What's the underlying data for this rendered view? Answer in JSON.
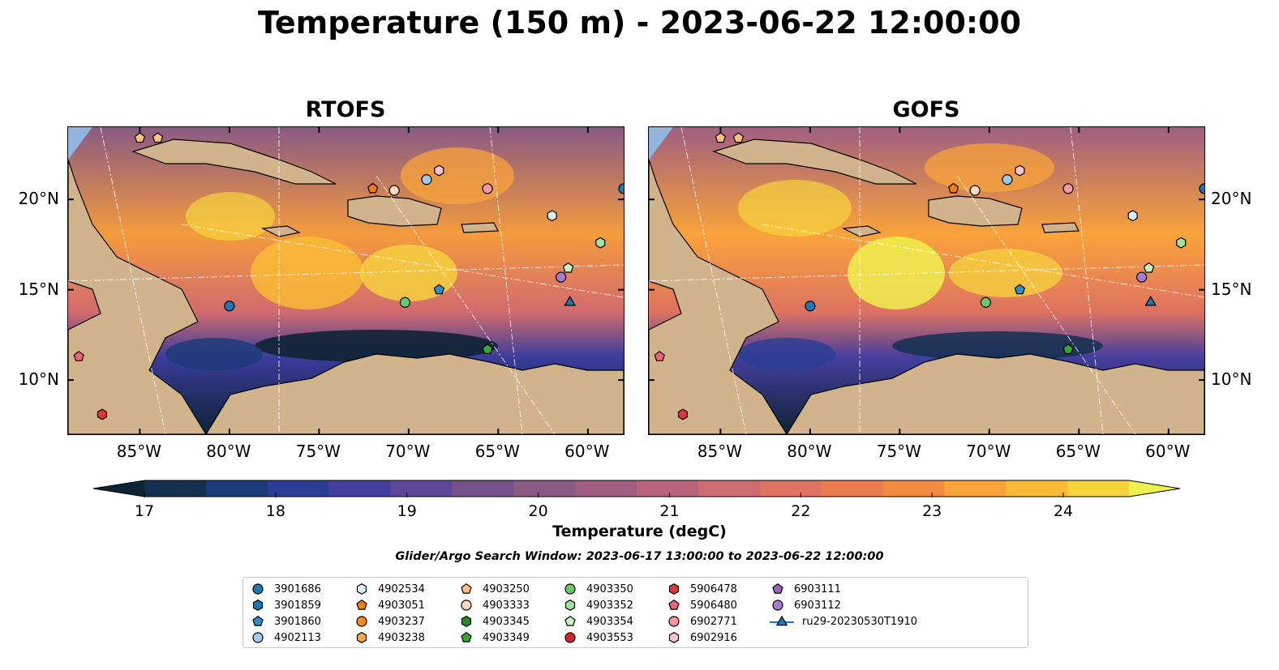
{
  "title": "Temperature (150 m) - 2023-06-22 12:00:00",
  "panels": [
    {
      "title": "RTOFS"
    },
    {
      "title": "GOFS"
    }
  ],
  "axes": {
    "lon_ticks": [
      "85°W",
      "80°W",
      "75°W",
      "70°W",
      "65°W",
      "60°W"
    ],
    "lat_ticks": [
      "20°N",
      "15°N",
      "10°N"
    ],
    "lon_range": [
      -89,
      -58
    ],
    "lat_range": [
      7,
      24
    ]
  },
  "colorbar": {
    "label": "Temperature (degC)",
    "ticks": [
      "17",
      "18",
      "19",
      "20",
      "21",
      "22",
      "23",
      "24"
    ],
    "range": [
      17,
      24.5
    ],
    "colors": [
      "#0d2433",
      "#13304f",
      "#1b3a78",
      "#2b3d94",
      "#453e9e",
      "#5d4797",
      "#745188",
      "#8a5a83",
      "#a05f80",
      "#b8657c",
      "#cc6b71",
      "#de7361",
      "#eb7c4f",
      "#f58b40",
      "#f9a33a",
      "#f9bb36",
      "#f6d43d",
      "#eff04e"
    ]
  },
  "search_window": "Glider/Argo Search Window: 2023-06-17 13:00:00 to 2023-06-22 12:00:00",
  "land_color": "#d2b48c",
  "shelf_color": "#93b4de",
  "legend": [
    {
      "id": "3901686",
      "marker": "circle",
      "color": "#1f77b4"
    },
    {
      "id": "3901859",
      "marker": "hexagon",
      "color": "#1f77b4"
    },
    {
      "id": "3901860",
      "marker": "pentagon",
      "color": "#2e8ec7"
    },
    {
      "id": "4902113",
      "marker": "circle",
      "color": "#9ec9ea"
    },
    {
      "id": "4902534",
      "marker": "hexagon",
      "color": "#d9ecfa"
    },
    {
      "id": "4903051",
      "marker": "pentagon",
      "color": "#ef7d18"
    },
    {
      "id": "4903237",
      "marker": "circle",
      "color": "#ff8c1a"
    },
    {
      "id": "4903238",
      "marker": "hexagon",
      "color": "#ffa552"
    },
    {
      "id": "4903250",
      "marker": "pentagon",
      "color": "#ffc183"
    },
    {
      "id": "4903333",
      "marker": "circle",
      "color": "#ffdab8"
    },
    {
      "id": "4903345",
      "marker": "hexagon",
      "color": "#238b23"
    },
    {
      "id": "4903349",
      "marker": "pentagon",
      "color": "#34a832"
    },
    {
      "id": "4903350",
      "marker": "circle",
      "color": "#6cc96a"
    },
    {
      "id": "4903352",
      "marker": "hexagon",
      "color": "#a3e19f"
    },
    {
      "id": "4903354",
      "marker": "pentagon",
      "color": "#c7f2c2"
    },
    {
      "id": "4903553",
      "marker": "circle",
      "color": "#d62728"
    },
    {
      "id": "5906478",
      "marker": "hexagon",
      "color": "#e03638"
    },
    {
      "id": "5906480",
      "marker": "pentagon",
      "color": "#ee6470"
    },
    {
      "id": "6902771",
      "marker": "circle",
      "color": "#f7979e"
    },
    {
      "id": "6902916",
      "marker": "hexagon",
      "color": "#fcc4c8"
    },
    {
      "id": "6903111",
      "marker": "pentagon",
      "color": "#9467bd"
    },
    {
      "id": "6903112",
      "marker": "circle",
      "color": "#a57dce"
    },
    {
      "id": "ru29-20230530T1910",
      "marker": "triangle",
      "color": "#1f77b4"
    }
  ],
  "observations": [
    {
      "id": "4903250",
      "lon": -85.0,
      "lat": 23.4
    },
    {
      "id": "4903250",
      "lon": -84.0,
      "lat": 23.4
    },
    {
      "id": "4903051",
      "lon": -72.0,
      "lat": 20.6
    },
    {
      "id": "4903333",
      "lon": -70.8,
      "lat": 20.5
    },
    {
      "id": "4902113",
      "lon": -69.0,
      "lat": 21.1
    },
    {
      "id": "6902916",
      "lon": -68.3,
      "lat": 21.6
    },
    {
      "id": "6902771",
      "lon": -65.6,
      "lat": 20.6
    },
    {
      "id": "4902534",
      "lon": -62.0,
      "lat": 19.1
    },
    {
      "id": "3901686",
      "lon": -58.0,
      "lat": 20.6
    },
    {
      "id": "4903352",
      "lon": -59.3,
      "lat": 17.6
    },
    {
      "id": "4903350",
      "lon": -70.2,
      "lat": 14.3
    },
    {
      "id": "3901860",
      "lon": -68.3,
      "lat": 15.0
    },
    {
      "id": "3901686",
      "lon": -80.0,
      "lat": 14.1
    },
    {
      "id": "4903349",
      "lon": -65.6,
      "lat": 11.7
    },
    {
      "id": "5906480",
      "lon": -88.4,
      "lat": 11.3
    },
    {
      "id": "5906478",
      "lon": -87.1,
      "lat": 8.1
    },
    {
      "id": "6903112",
      "lon": -61.5,
      "lat": 15.7
    },
    {
      "id": "4903354",
      "lon": -61.1,
      "lat": 16.2
    },
    {
      "id": "ru29-20230530T1910",
      "lon": -61.0,
      "lat": 14.3
    }
  ]
}
